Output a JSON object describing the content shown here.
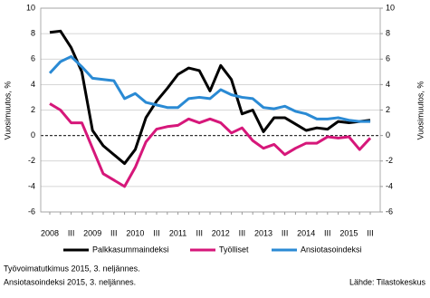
{
  "chart_data": {
    "type": "line",
    "categories": [
      "2008",
      null,
      "III",
      null,
      "2009",
      null,
      "III",
      null,
      "2010",
      null,
      "III",
      null,
      "2011",
      null,
      "III",
      null,
      "2012",
      null,
      "III",
      null,
      "2013",
      null,
      "III",
      null,
      "2014",
      null,
      "III",
      null,
      "2015",
      null,
      "III"
    ],
    "series": [
      {
        "name": "Palkkasummaindeksi",
        "color": "#000000",
        "values": [
          8.1,
          8.2,
          6.9,
          5.0,
          0.4,
          -0.8,
          -1.5,
          -2.2,
          -1.1,
          1.4,
          2.7,
          3.7,
          4.8,
          5.3,
          5.1,
          3.5,
          5.5,
          4.4,
          1.7,
          2.0,
          0.3,
          1.4,
          1.4,
          0.9,
          0.4,
          0.6,
          0.5,
          1.1,
          1.0,
          1.1,
          1.2
        ]
      },
      {
        "name": "Työlliset",
        "color": "#d6177a",
        "values": [
          2.5,
          2.0,
          1.0,
          1.0,
          -1.0,
          -3.0,
          -3.5,
          -4.0,
          -2.5,
          -0.5,
          0.5,
          0.7,
          0.8,
          1.3,
          1.0,
          1.3,
          1.0,
          0.2,
          0.6,
          -0.4,
          -1.0,
          -0.7,
          -1.5,
          -1.0,
          -0.6,
          -0.6,
          -0.1,
          -0.2,
          -0.1,
          -1.1,
          -0.2
        ]
      },
      {
        "name": "Ansiotasoindeksi",
        "color": "#2a8ad4",
        "values": [
          4.9,
          5.8,
          6.2,
          5.4,
          4.5,
          4.4,
          4.3,
          2.9,
          3.3,
          2.6,
          2.4,
          2.2,
          2.2,
          2.9,
          3.0,
          2.9,
          3.6,
          3.2,
          3.0,
          2.9,
          2.2,
          2.1,
          2.3,
          1.9,
          1.7,
          1.3,
          1.3,
          1.4,
          1.2,
          1.1,
          1.1
        ]
      }
    ],
    "ylim": [
      -6,
      10
    ],
    "yticks": [
      -6,
      -4,
      -2,
      0,
      2,
      4,
      6,
      8,
      10
    ],
    "y2lim": [
      -6,
      10
    ],
    "y2ticks": [
      -6,
      -4,
      -2,
      0,
      2,
      4,
      6,
      8,
      10
    ],
    "ylabel": "Vuosimuutos, %",
    "y2label": "Vuosimuutos, %",
    "grid": true,
    "notes": [
      "Työvoimatutkimus  2015, 3. neljännes.",
      "Ansiotasoindeksi  2015, 3. neljännes."
    ],
    "source": "Lähde: Tilastokeskus"
  }
}
